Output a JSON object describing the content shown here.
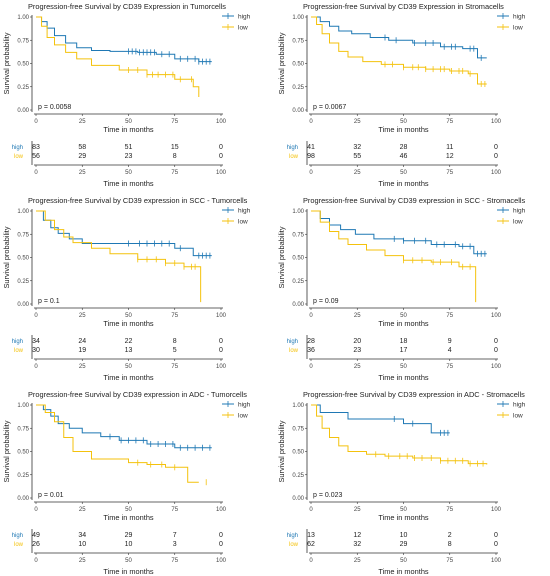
{
  "chart_data": [
    {
      "type": "line",
      "title": "Progression-free Survival by CD39 Expression in Tumorcells",
      "xlabel": "Time in months",
      "ylabel": "Survival probability",
      "p_value": "p = 0.0058",
      "xlim": [
        0,
        100
      ],
      "ylim": [
        0,
        1
      ],
      "xticks": [
        "0",
        "25",
        "50",
        "75",
        "100"
      ],
      "yticks": [
        "0.00",
        "0.25",
        "0.50",
        "0.75",
        "1.00"
      ],
      "legend": "top-right",
      "series": [
        {
          "name": "high",
          "color": "#1f78b4",
          "x": [
            0,
            3,
            6,
            10,
            16,
            22,
            30,
            40,
            55,
            65,
            75,
            88,
            95
          ],
          "y": [
            1.0,
            0.95,
            0.88,
            0.8,
            0.72,
            0.67,
            0.64,
            0.63,
            0.62,
            0.6,
            0.55,
            0.52,
            0.52
          ],
          "censor": [
            50,
            52,
            54,
            56,
            58,
            60,
            62,
            64,
            68,
            72,
            78,
            82,
            86,
            88,
            90,
            92,
            94
          ]
        },
        {
          "name": "low",
          "color": "#f4c20d",
          "x": [
            0,
            3,
            6,
            10,
            16,
            22,
            30,
            45,
            60,
            75,
            85,
            88
          ],
          "y": [
            1.0,
            0.9,
            0.78,
            0.7,
            0.62,
            0.55,
            0.48,
            0.43,
            0.38,
            0.33,
            0.25,
            0.14
          ],
          "censor": [
            50,
            55,
            60,
            63,
            66,
            70,
            74,
            78,
            84
          ]
        }
      ],
      "risk_table": {
        "labels": [
          "high",
          "low"
        ],
        "x": [
          0,
          25,
          50,
          75,
          100
        ],
        "rows": [
          [
            "83",
            "58",
            "51",
            "15",
            "0"
          ],
          [
            "56",
            "29",
            "23",
            "8",
            "0"
          ]
        ]
      }
    },
    {
      "type": "line",
      "title": "Progression-free Survival by CD39 Expression in Stromacells",
      "xlabel": "Time in months",
      "ylabel": "Survival probability",
      "p_value": "p = 0.0067",
      "xlim": [
        0,
        100
      ],
      "ylim": [
        0,
        1
      ],
      "xticks": [
        "0",
        "25",
        "50",
        "75",
        "100"
      ],
      "yticks": [
        "0.00",
        "0.25",
        "0.50",
        "0.75",
        "1.00"
      ],
      "legend": "top-right",
      "series": [
        {
          "name": "high",
          "color": "#1f78b4",
          "x": [
            0,
            5,
            10,
            15,
            22,
            32,
            42,
            55,
            70,
            82,
            90,
            95
          ],
          "y": [
            1.0,
            0.95,
            0.9,
            0.85,
            0.82,
            0.78,
            0.75,
            0.72,
            0.68,
            0.66,
            0.56,
            0.56
          ],
          "censor": [
            40,
            46,
            56,
            62,
            66,
            72,
            76,
            78,
            86,
            88,
            92
          ]
        },
        {
          "name": "low",
          "color": "#f4c20d",
          "x": [
            0,
            3,
            6,
            10,
            15,
            20,
            28,
            38,
            50,
            62,
            75,
            85,
            90,
            95
          ],
          "y": [
            1.0,
            0.92,
            0.82,
            0.72,
            0.63,
            0.57,
            0.52,
            0.49,
            0.46,
            0.44,
            0.42,
            0.39,
            0.28,
            0.28
          ],
          "censor": [
            40,
            44,
            50,
            55,
            58,
            62,
            66,
            70,
            72,
            76,
            80,
            82,
            86,
            92,
            94
          ]
        }
      ],
      "risk_table": {
        "labels": [
          "high",
          "low"
        ],
        "x": [
          0,
          25,
          50,
          75,
          100
        ],
        "rows": [
          [
            "41",
            "32",
            "28",
            "11",
            "0"
          ],
          [
            "98",
            "55",
            "46",
            "12",
            "0"
          ]
        ]
      }
    },
    {
      "type": "line",
      "title": "Progression-free Survival by CD39 expression in SCC - Tumorcells",
      "xlabel": "Time in months",
      "ylabel": "Survival probability",
      "p_value": "p = 0.1",
      "xlim": [
        0,
        100
      ],
      "ylim": [
        0,
        1
      ],
      "xticks": [
        "0",
        "25",
        "50",
        "75",
        "100"
      ],
      "yticks": [
        "0.00",
        "0.25",
        "0.50",
        "0.75",
        "1.00"
      ],
      "legend": "top-right",
      "series": [
        {
          "name": "high",
          "color": "#1f78b4",
          "x": [
            0,
            4,
            8,
            12,
            18,
            25,
            35,
            60,
            75,
            85,
            95
          ],
          "y": [
            1.0,
            0.9,
            0.82,
            0.76,
            0.7,
            0.65,
            0.65,
            0.65,
            0.6,
            0.52,
            0.52
          ],
          "censor": [
            50,
            56,
            60,
            64,
            68,
            72,
            78,
            88,
            90,
            92,
            94
          ]
        },
        {
          "name": "low",
          "color": "#f4c20d",
          "x": [
            0,
            5,
            10,
            15,
            20,
            30,
            40,
            55,
            70,
            80,
            88,
            89
          ],
          "y": [
            1.0,
            0.9,
            0.8,
            0.72,
            0.66,
            0.6,
            0.54,
            0.48,
            0.44,
            0.4,
            0.4,
            0.02
          ],
          "censor": [
            55,
            60,
            65,
            70,
            75,
            80,
            84,
            86
          ]
        }
      ],
      "risk_table": {
        "labels": [
          "high",
          "low"
        ],
        "x": [
          0,
          25,
          50,
          75,
          100
        ],
        "rows": [
          [
            "34",
            "24",
            "22",
            "8",
            "0"
          ],
          [
            "30",
            "19",
            "13",
            "5",
            "0"
          ]
        ]
      }
    },
    {
      "type": "line",
      "title": "Progression-free Survival by CD39 expression in SCC - Stromacells",
      "xlabel": "Time in months",
      "ylabel": "Survival probability",
      "p_value": "p = 0.09",
      "xlim": [
        0,
        100
      ],
      "ylim": [
        0,
        1
      ],
      "xticks": [
        "0",
        "25",
        "50",
        "75",
        "100"
      ],
      "yticks": [
        "0.00",
        "0.25",
        "0.50",
        "0.75",
        "1.00"
      ],
      "legend": "top-right",
      "series": [
        {
          "name": "high",
          "color": "#1f78b4",
          "x": [
            0,
            5,
            10,
            16,
            24,
            34,
            50,
            65,
            80,
            88,
            95
          ],
          "y": [
            1.0,
            0.92,
            0.85,
            0.8,
            0.75,
            0.7,
            0.68,
            0.64,
            0.62,
            0.54,
            0.54
          ],
          "censor": [
            45,
            50,
            56,
            62,
            68,
            72,
            78,
            82,
            86,
            90,
            92,
            94
          ]
        },
        {
          "name": "low",
          "color": "#f4c20d",
          "x": [
            0,
            5,
            10,
            15,
            20,
            30,
            40,
            50,
            65,
            80,
            88,
            89
          ],
          "y": [
            1.0,
            0.88,
            0.78,
            0.7,
            0.64,
            0.58,
            0.52,
            0.47,
            0.45,
            0.4,
            0.4,
            0.02
          ],
          "censor": [
            50,
            55,
            60,
            66,
            70,
            76,
            82,
            86
          ]
        }
      ],
      "risk_table": {
        "labels": [
          "high",
          "low"
        ],
        "x": [
          0,
          25,
          50,
          75,
          100
        ],
        "rows": [
          [
            "28",
            "20",
            "18",
            "9",
            "0"
          ],
          [
            "36",
            "23",
            "17",
            "4",
            "0"
          ]
        ]
      }
    },
    {
      "type": "line",
      "title": "Progression-free Survival by CD39 expression in ADC - Tumorcells",
      "xlabel": "Time in months",
      "ylabel": "Survival probability",
      "p_value": "p = 0.01",
      "xlim": [
        0,
        100
      ],
      "ylim": [
        0,
        1
      ],
      "xticks": [
        "0",
        "25",
        "50",
        "75",
        "100"
      ],
      "yticks": [
        "0.00",
        "0.25",
        "0.50",
        "0.75",
        "1.00"
      ],
      "legend": "top-right",
      "series": [
        {
          "name": "high",
          "color": "#1f78b4",
          "x": [
            0,
            4,
            8,
            12,
            18,
            25,
            35,
            45,
            60,
            75,
            95
          ],
          "y": [
            1.0,
            0.95,
            0.88,
            0.8,
            0.75,
            0.7,
            0.66,
            0.62,
            0.58,
            0.54,
            0.54
          ],
          "censor": [
            40,
            46,
            50,
            54,
            58,
            62,
            66,
            70,
            74,
            78,
            82,
            86,
            90,
            94
          ]
        },
        {
          "name": "low",
          "color": "#f4c20d",
          "x": [
            0,
            5,
            10,
            15,
            20,
            30,
            50,
            60,
            70,
            82,
            88
          ],
          "y": [
            1.0,
            0.92,
            0.82,
            0.65,
            0.5,
            0.42,
            0.38,
            0.36,
            0.33,
            0.17,
            0.17
          ],
          "censor": [
            55,
            62,
            68,
            75,
            92
          ]
        }
      ],
      "risk_table": {
        "labels": [
          "high",
          "low"
        ],
        "x": [
          0,
          25,
          50,
          75,
          100
        ],
        "rows": [
          [
            "49",
            "34",
            "29",
            "7",
            "0"
          ],
          [
            "26",
            "10",
            "10",
            "3",
            "0"
          ]
        ]
      }
    },
    {
      "type": "line",
      "title": "Progression-free Survival by CD39 expression in ADC - Stromacells",
      "xlabel": "Time in months",
      "ylabel": "Survival probability",
      "p_value": "p = 0.023",
      "xlim": [
        0,
        100
      ],
      "ylim": [
        0,
        1
      ],
      "xticks": [
        "0",
        "25",
        "50",
        "75",
        "100"
      ],
      "yticks": [
        "0.00",
        "0.25",
        "0.50",
        "0.75",
        "1.00"
      ],
      "legend": "top-right",
      "series": [
        {
          "name": "high",
          "color": "#1f78b4",
          "x": [
            0,
            5,
            10,
            20,
            35,
            50,
            65,
            75
          ],
          "y": [
            1.0,
            0.92,
            0.92,
            0.85,
            0.85,
            0.8,
            0.7,
            0.7
          ],
          "censor": [
            45,
            55,
            70,
            72,
            74
          ]
        },
        {
          "name": "low",
          "color": "#f4c20d",
          "x": [
            0,
            3,
            6,
            10,
            15,
            20,
            30,
            40,
            55,
            70,
            85,
            95
          ],
          "y": [
            1.0,
            0.88,
            0.75,
            0.65,
            0.56,
            0.5,
            0.47,
            0.45,
            0.43,
            0.4,
            0.37,
            0.36
          ],
          "censor": [
            35,
            42,
            48,
            52,
            56,
            60,
            65,
            70,
            74,
            78,
            82,
            86,
            90,
            93
          ]
        }
      ],
      "risk_table": {
        "labels": [
          "high",
          "low"
        ],
        "x": [
          0,
          25,
          50,
          75,
          100
        ],
        "rows": [
          [
            "13",
            "12",
            "10",
            "2",
            "0"
          ],
          [
            "62",
            "32",
            "29",
            "8",
            "0"
          ]
        ]
      }
    }
  ]
}
